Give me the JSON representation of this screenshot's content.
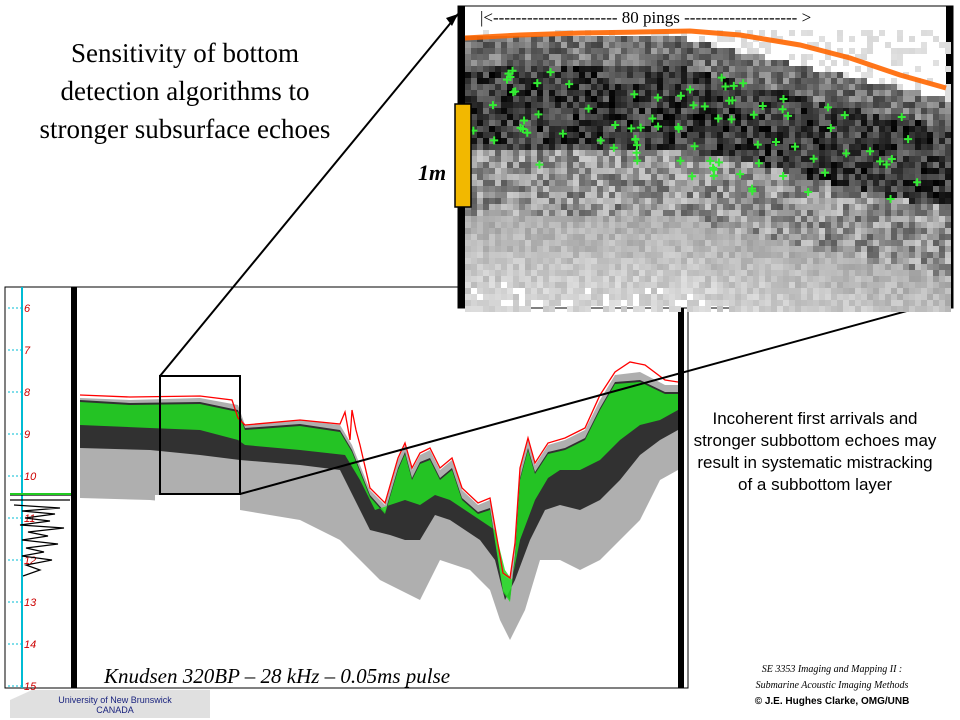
{
  "title": "Sensitivity of bottom detection algorithms to stronger subsurface echoes",
  "description": "Incoherent first arrivals and stronger subbottom echoes may result in systematic mistracking of a subbottom layer",
  "caption": "Knudsen 320BP – 28 kHz – 0.05ms pulse",
  "inset": {
    "pings_label": "|<---------------------- 80 pings -------------------- >",
    "scale_label": "1m"
  },
  "depth_axis": {
    "ticks": [
      "6",
      "7",
      "8",
      "9",
      "10",
      "11",
      "12",
      "13",
      "14",
      "15"
    ]
  },
  "credit": {
    "line1": "SE 3353 Imaging and Mapping II :",
    "line2": "Submarine Acoustic Imaging Methods",
    "line3": "© J.E. Hughes Clarke, OMG/UNB"
  },
  "logo": {
    "line1": "University of New Brunswick",
    "line2": "CANADA"
  },
  "colors": {
    "bottom_track": "#ff0000",
    "detection_green": "#22dd22",
    "inset_orange": "#ff6600",
    "scale_bar": "#f2b800",
    "axis_cyan": "#00bcd4"
  }
}
